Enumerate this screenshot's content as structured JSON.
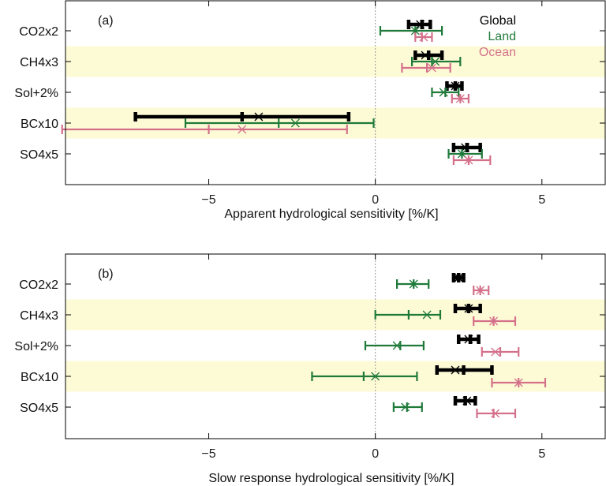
{
  "chart_data": [
    {
      "type": "errorbar",
      "panel_label": "(a)",
      "xlabel": "Apparent hydrological sensitivity [%/K]",
      "xlim": [
        -9.3,
        6.9
      ],
      "xticks": [
        -5,
        0,
        5
      ],
      "categories": [
        "CO2x2",
        "CH4x3",
        "Sol+2%",
        "BCx10",
        "SO4x5"
      ],
      "legend": {
        "position": "top-right",
        "entries": [
          "Global",
          "Land",
          "Ocean"
        ]
      },
      "colors": {
        "Global": "#000000",
        "Land": "#1f7a3a",
        "Ocean": "#d4708a",
        "band": "#fdfbd6",
        "zero_line": "#999999"
      },
      "series": [
        {
          "name": "Global",
          "mean": [
            1.4,
            1.6,
            2.4,
            -4.0,
            2.75
          ],
          "x_marker": [
            1.35,
            1.5,
            2.4,
            -3.5,
            2.7
          ],
          "low": [
            1.0,
            1.2,
            2.15,
            -7.2,
            2.35
          ],
          "high": [
            1.65,
            2.0,
            2.6,
            -0.8,
            3.15
          ]
        },
        {
          "name": "Land",
          "mean": [
            1.2,
            1.7,
            2.1,
            -2.9,
            2.6
          ],
          "x_marker": [
            1.2,
            1.8,
            2.05,
            -2.4,
            2.6
          ],
          "low": [
            0.15,
            1.1,
            1.7,
            -5.7,
            2.2
          ],
          "high": [
            2.0,
            2.55,
            2.5,
            -0.05,
            3.2
          ]
        },
        {
          "name": "Ocean",
          "mean": [
            1.4,
            1.55,
            2.55,
            -5.0,
            2.8
          ],
          "x_marker": [
            1.45,
            1.7,
            2.55,
            -4.0,
            2.8
          ],
          "low": [
            1.2,
            0.8,
            2.3,
            -9.4,
            2.35
          ],
          "high": [
            1.7,
            2.25,
            2.8,
            -0.85,
            3.45
          ]
        }
      ]
    },
    {
      "type": "errorbar",
      "panel_label": "(b)",
      "xlabel": "Slow response hydrological sensitivity [%/K]",
      "xlim": [
        -9.3,
        6.9
      ],
      "xticks": [
        -5,
        0,
        5
      ],
      "categories": [
        "CO2x2",
        "CH4x3",
        "Sol+2%",
        "BCx10",
        "SO4x5"
      ],
      "colors": {
        "Global": "#000000",
        "Land": "#1f7a3a",
        "Ocean": "#d4708a",
        "band": "#fdfbd6",
        "zero_line": "#999999"
      },
      "series": [
        {
          "name": "Global",
          "mean": [
            2.5,
            2.8,
            2.85,
            2.65,
            2.7
          ],
          "x_marker": [
            2.5,
            2.8,
            2.8,
            2.4,
            2.75
          ],
          "low": [
            2.35,
            2.4,
            2.5,
            1.85,
            2.4
          ],
          "high": [
            2.65,
            3.15,
            3.1,
            3.5,
            3.0
          ]
        },
        {
          "name": "Land",
          "mean": [
            1.15,
            1.0,
            0.75,
            -0.35,
            0.95
          ],
          "x_marker": [
            1.15,
            1.55,
            0.65,
            0.0,
            0.9
          ],
          "low": [
            0.65,
            0.0,
            -0.3,
            -1.9,
            0.55
          ],
          "high": [
            1.6,
            1.95,
            1.45,
            1.25,
            1.4
          ]
        },
        {
          "name": "Ocean",
          "mean": [
            3.15,
            3.55,
            3.75,
            4.3,
            3.55
          ],
          "x_marker": [
            3.15,
            3.55,
            3.6,
            4.3,
            3.6
          ],
          "low": [
            2.95,
            2.95,
            3.2,
            3.5,
            3.05
          ],
          "high": [
            3.4,
            4.2,
            4.3,
            5.1,
            4.2
          ]
        }
      ]
    }
  ]
}
